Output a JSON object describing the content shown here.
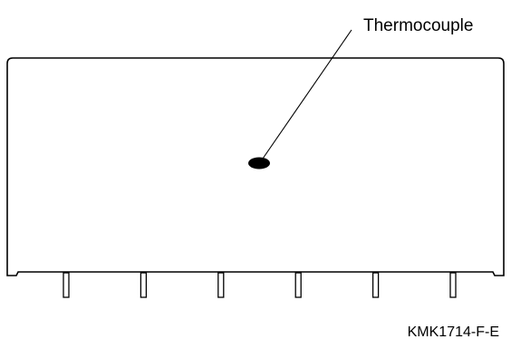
{
  "diagram": {
    "callout_label": "Thermocouple",
    "figure_code": "KMK1714-F-E",
    "pin_count": 6
  },
  "colors": {
    "stroke": "#000000",
    "background": "#ffffff"
  }
}
